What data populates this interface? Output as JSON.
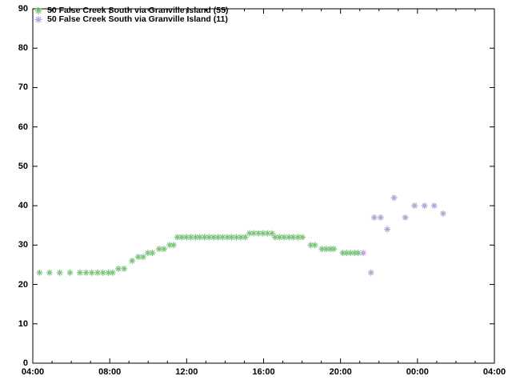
{
  "chart_data": {
    "type": "scatter",
    "title": "",
    "xlabel": "",
    "ylabel": "",
    "grid": false,
    "legend_position": "top-left-inside",
    "marker_style": "asterisk",
    "x_axis": {
      "unit": "time-of-day",
      "start_hour": 4,
      "end_hour": 28,
      "major_step_hours": 4,
      "minor_step_hours": 1,
      "tick_labels": [
        "04:00",
        "08:00",
        "12:00",
        "16:00",
        "20:00",
        "00:00",
        "04:00"
      ]
    },
    "y_axis": {
      "min": 0,
      "max": 90,
      "step": 10,
      "tick_labels": [
        "0",
        "10",
        "20",
        "30",
        "40",
        "50",
        "60",
        "70",
        "80",
        "90"
      ]
    },
    "series": [
      {
        "name": "50 False Creek South via Granville Island (55)",
        "color": "#7cc47c",
        "marker": "asterisk",
        "points": [
          [
            "04:21",
            23
          ],
          [
            "04:52",
            23
          ],
          [
            "05:24",
            23
          ],
          [
            "05:56",
            23
          ],
          [
            "06:27",
            23
          ],
          [
            "06:46",
            23
          ],
          [
            "07:04",
            23
          ],
          [
            "07:22",
            23
          ],
          [
            "07:39",
            23
          ],
          [
            "07:56",
            23
          ],
          [
            "08:09",
            23
          ],
          [
            "08:27",
            24
          ],
          [
            "08:45",
            24
          ],
          [
            "09:10",
            26
          ],
          [
            "09:29",
            27
          ],
          [
            "09:44",
            27
          ],
          [
            "09:59",
            28
          ],
          [
            "10:13",
            28
          ],
          [
            "10:34",
            29
          ],
          [
            "10:49",
            29
          ],
          [
            "11:07",
            30
          ],
          [
            "11:19",
            30
          ],
          [
            "11:31",
            32
          ],
          [
            "11:45",
            32
          ],
          [
            "11:59",
            32
          ],
          [
            "12:13",
            32
          ],
          [
            "12:28",
            32
          ],
          [
            "12:41",
            32
          ],
          [
            "12:56",
            32
          ],
          [
            "13:10",
            32
          ],
          [
            "13:24",
            32
          ],
          [
            "13:38",
            32
          ],
          [
            "13:52",
            32
          ],
          [
            "14:07",
            32
          ],
          [
            "14:20",
            32
          ],
          [
            "14:35",
            32
          ],
          [
            "14:49",
            32
          ],
          [
            "15:03",
            32
          ],
          [
            "15:16",
            33
          ],
          [
            "15:29",
            33
          ],
          [
            "15:44",
            33
          ],
          [
            "15:58",
            33
          ],
          [
            "16:12",
            33
          ],
          [
            "16:26",
            33
          ],
          [
            "16:36",
            32
          ],
          [
            "16:50",
            32
          ],
          [
            "17:04",
            32
          ],
          [
            "17:19",
            32
          ],
          [
            "17:32",
            32
          ],
          [
            "17:47",
            32
          ],
          [
            "18:01",
            32
          ],
          [
            "18:27",
            30
          ],
          [
            "18:40",
            30
          ],
          [
            "19:02",
            29
          ],
          [
            "19:15",
            29
          ],
          [
            "19:28",
            29
          ],
          [
            "19:39",
            29
          ],
          [
            "20:07",
            28
          ],
          [
            "20:19",
            28
          ],
          [
            "20:31",
            28
          ],
          [
            "20:44",
            28
          ],
          [
            "20:55",
            28
          ]
        ]
      },
      {
        "name": "50 False Creek South via Granville Island (11)",
        "color": "#b3a5d3",
        "marker": "asterisk",
        "points": [
          [
            "21:11",
            28
          ],
          [
            "21:35",
            23
          ],
          [
            "21:45",
            37
          ],
          [
            "22:05",
            37
          ],
          [
            "22:26",
            34
          ],
          [
            "22:47",
            42
          ],
          [
            "23:22",
            37
          ],
          [
            "23:51",
            40
          ],
          [
            "00:22",
            40
          ],
          [
            "00:52",
            40
          ],
          [
            "01:20",
            38
          ]
        ]
      }
    ]
  },
  "style": {
    "axis_color": "#000000",
    "background_color": "#ffffff",
    "text_color": "#000000"
  }
}
